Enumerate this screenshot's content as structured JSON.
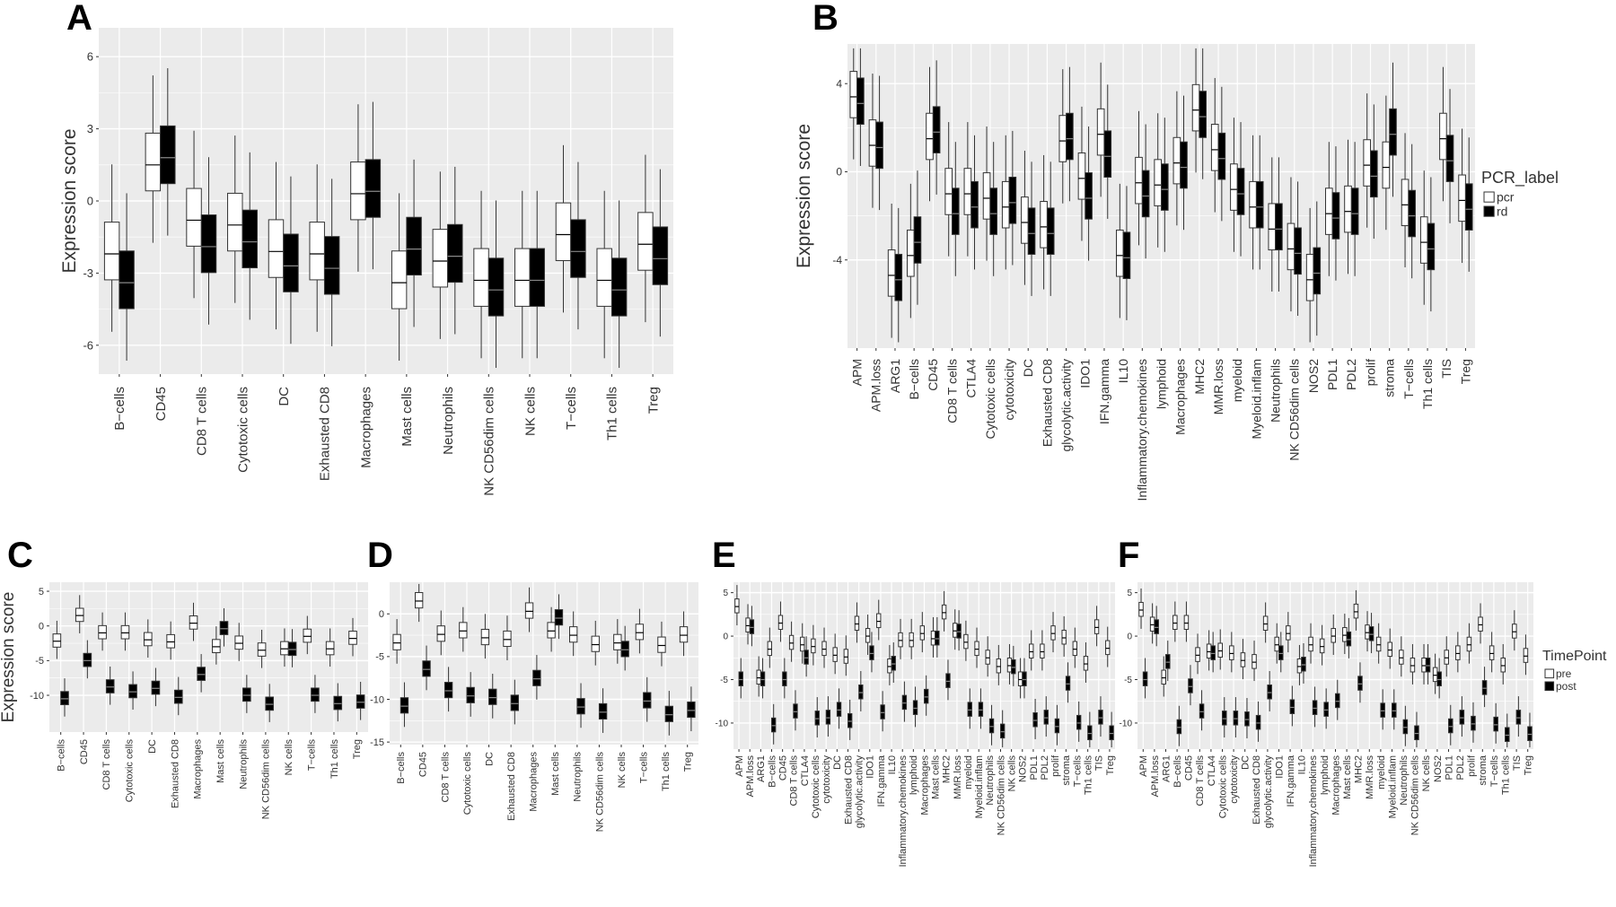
{
  "figure": {
    "panel_letters": [
      "A",
      "B",
      "C",
      "D",
      "E",
      "F"
    ],
    "ylabel": "Expression score"
  },
  "legends": {
    "pcr": {
      "title": "PCR_label",
      "items": [
        {
          "label": "pcr",
          "fill": "#ffffff"
        },
        {
          "label": "rd",
          "fill": "#000000"
        }
      ]
    },
    "timepoint": {
      "title": "TimePoint",
      "items": [
        {
          "label": "pre",
          "fill": "#ffffff"
        },
        {
          "label": "post",
          "fill": "#000000"
        }
      ]
    }
  },
  "colors": {
    "panel_background": "#ebebeb",
    "grid": "#ffffff",
    "group1_fill": "#ffffff",
    "group2_fill": "#000000",
    "box_stroke": "#333333"
  },
  "chart_data": [
    {
      "panel": "A",
      "type": "boxplot",
      "ylabel": "Expression score",
      "ylim": [
        -7.2,
        7.2
      ],
      "yticks": [
        -6,
        -3,
        0,
        3,
        6
      ],
      "grid": true,
      "legend": "none",
      "groups": [
        "pcr",
        "rd"
      ],
      "categories": [
        "B−cells",
        "CD45",
        "CD8 T cells",
        "Cytotoxic cells",
        "DC",
        "Exhausted CD8",
        "Macrophages",
        "Mast cells",
        "Neutrophils",
        "NK CD56dim cells",
        "NK cells",
        "T−cells",
        "Th1 cells",
        "Treg"
      ],
      "series": [
        {
          "name": "pcr",
          "medians": [
            -2.2,
            1.5,
            -0.8,
            -1.0,
            -2.1,
            -2.2,
            0.3,
            -3.4,
            -2.5,
            -3.3,
            -3.3,
            -1.4,
            -3.3,
            -1.8
          ]
        },
        {
          "name": "rd",
          "medians": [
            -3.4,
            1.8,
            -1.9,
            -1.7,
            -2.7,
            -2.8,
            0.4,
            -2.0,
            -2.3,
            -3.7,
            -3.3,
            -2.1,
            -3.7,
            -2.4
          ]
        }
      ]
    },
    {
      "panel": "B",
      "type": "boxplot",
      "ylabel": "Expression score",
      "ylim": [
        -8.0,
        5.8
      ],
      "yticks": [
        -4,
        0,
        4
      ],
      "grid": true,
      "legend": "right",
      "groups": [
        "pcr",
        "rd"
      ],
      "categories": [
        "APM",
        "APM.loss",
        "ARG1",
        "B−cells",
        "CD45",
        "CD8 T cells",
        "CTLA4",
        "Cytotoxic cells",
        "cytotoxicity",
        "DC",
        "Exhausted CD8",
        "glycolytic.activity",
        "IDO1",
        "IFN.gamma",
        "IL10",
        "Inflammatory.chemokines",
        "lymphoid",
        "Macrophages",
        "MHC2",
        "MMR.loss",
        "myeloid",
        "Myeloid.inflam",
        "Neutrophils",
        "NK CD56dim cells",
        "NOS2",
        "PDL1",
        "PDL2",
        "prolif",
        "stroma",
        "T−cells",
        "Th1 cells",
        "TIS",
        "Treg"
      ],
      "series": [
        {
          "name": "pcr",
          "medians": [
            3.4,
            1.2,
            -4.7,
            -3.8,
            1.5,
            -1.0,
            -1.0,
            -1.2,
            -1.6,
            -2.3,
            -2.5,
            1.4,
            -0.3,
            1.7,
            -3.8,
            -0.5,
            -0.6,
            0.4,
            2.8,
            1.0,
            -0.8,
            -1.6,
            -2.6,
            -3.5,
            -4.9,
            -1.9,
            -1.8,
            0.3,
            0.2,
            -1.5,
            -3.2,
            1.5,
            -1.3
          ]
        },
        {
          "name": "rd",
          "medians": [
            3.1,
            1.1,
            -4.9,
            -3.2,
            1.8,
            -1.9,
            -1.6,
            -1.9,
            -1.4,
            -2.8,
            -2.8,
            1.5,
            -1.2,
            0.7,
            -3.9,
            -1.1,
            -0.8,
            0.2,
            2.5,
            0.6,
            -1.0,
            -1.6,
            -2.6,
            -3.7,
            -4.6,
            -2.1,
            -1.9,
            -0.2,
            1.7,
            -2.0,
            -3.5,
            0.5,
            -1.7
          ]
        }
      ]
    },
    {
      "panel": "C",
      "type": "boxplot",
      "ylabel": "Expression score",
      "ylim": [
        -15.3,
        6.3
      ],
      "yticks": [
        -10,
        -5,
        0,
        5
      ],
      "grid": true,
      "legend": "none",
      "groups": [
        "pre",
        "post"
      ],
      "categories": [
        "B−cells",
        "CD45",
        "CD8 T cells",
        "Cytotoxic cells",
        "DC",
        "Exhausted CD8",
        "Macrophages",
        "Mast cells",
        "Neutrophils",
        "NK CD56dim cells",
        "NK cells",
        "T−cells",
        "Th1 cells",
        "Treg"
      ],
      "series": [
        {
          "name": "pre",
          "medians": [
            -2.2,
            1.5,
            -1.0,
            -1.0,
            -2.0,
            -2.3,
            0.4,
            -3.0,
            -2.5,
            -3.5,
            -3.3,
            -1.5,
            -3.3,
            -1.8
          ]
        },
        {
          "name": "post",
          "medians": [
            -10.5,
            -5.0,
            -8.8,
            -9.5,
            -9.0,
            -10.3,
            -7.0,
            -0.4,
            -10.0,
            -11.3,
            -3.4,
            -10.0,
            -11.2,
            -11.0
          ]
        }
      ]
    },
    {
      "panel": "D",
      "type": "boxplot",
      "ylabel": "",
      "ylim": [
        -15.3,
        3.7
      ],
      "yticks": [
        -15,
        -10,
        -5,
        0
      ],
      "grid": true,
      "legend": "none",
      "groups": [
        "pre",
        "post"
      ],
      "categories": [
        "B−cells",
        "CD45",
        "CD8 T cells",
        "Cytotoxic cells",
        "DC",
        "Exhausted CD8",
        "Macrophages",
        "Mast cells",
        "Neutrophils",
        "NK CD56dim cells",
        "NK cells",
        "T−cells",
        "Th1 cells",
        "Treg"
      ],
      "series": [
        {
          "name": "pre",
          "medians": [
            -3.4,
            1.5,
            -2.4,
            -2.0,
            -2.8,
            -3.0,
            0.3,
            -2.0,
            -2.5,
            -3.6,
            -3.4,
            -2.2,
            -3.7,
            -2.5
          ]
        },
        {
          "name": "post",
          "medians": [
            -10.8,
            -6.5,
            -9.0,
            -9.6,
            -9.8,
            -10.5,
            -7.6,
            -0.5,
            -10.9,
            -11.5,
            -4.2,
            -10.2,
            -11.8,
            -11.3
          ]
        }
      ]
    },
    {
      "panel": "E",
      "type": "boxplot",
      "ylabel": "",
      "ylim": [
        -13.0,
        6.2
      ],
      "yticks": [
        -10,
        -5,
        0,
        5
      ],
      "grid": true,
      "legend": "none",
      "groups": [
        "pre",
        "post"
      ],
      "categories": [
        "APM",
        "APM.loss",
        "ARG1",
        "B−cells",
        "CD45",
        "CD8 T cells",
        "CTLA4",
        "Cytotoxic cells",
        "cytotoxicity",
        "DC",
        "Exhausted CD8",
        "glycolytic.activity",
        "IDO1",
        "IFN.gamma",
        "IL10",
        "Inflammatory.chemokines",
        "lymphoid",
        "Macrophages",
        "Mast cells",
        "MHC2",
        "MMR.loss",
        "myeloid",
        "Myeloid.inflam",
        "Neutrophils",
        "NK CD56dim cells",
        "NK cells",
        "NOS2",
        "PDL1",
        "PDL2",
        "prolif",
        "stroma",
        "T−cells",
        "Th1 cells",
        "TIS",
        "Treg"
      ],
      "series": [
        {
          "name": "pre",
          "medians": [
            3.4,
            1.2,
            -4.8,
            -1.5,
            1.5,
            -0.8,
            -1.0,
            -1.2,
            -1.5,
            -2.2,
            -2.4,
            1.4,
            0.0,
            1.7,
            -3.5,
            -0.5,
            -0.5,
            0.3,
            -0.3,
            2.7,
            0.6,
            -0.7,
            -1.5,
            -2.5,
            -3.5,
            -3.4,
            -5.0,
            -1.8,
            -1.8,
            0.3,
            -0.2,
            -1.5,
            -3.2,
            1.0,
            -1.4
          ]
        },
        {
          "name": "post",
          "medians": [
            -5.0,
            1.0,
            -5.0,
            -10.3,
            -5.0,
            -8.7,
            -2.5,
            -9.5,
            -9.4,
            -8.5,
            -9.8,
            -6.5,
            -2.0,
            -8.8,
            -3.2,
            -7.7,
            -8.3,
            -7.0,
            -0.3,
            -5.2,
            0.5,
            -8.5,
            -8.5,
            -10.4,
            -11.0,
            -3.6,
            -5.0,
            -9.7,
            -9.4,
            -10.4,
            -5.5,
            -10.0,
            -11.2,
            -9.4,
            -11.2
          ]
        }
      ]
    },
    {
      "panel": "F",
      "type": "boxplot",
      "ylabel": "",
      "ylim": [
        -13.0,
        6.2
      ],
      "yticks": [
        -10,
        -5,
        0,
        5
      ],
      "grid": true,
      "legend": "right",
      "groups": [
        "pre",
        "post"
      ],
      "categories": [
        "APM",
        "APM.loss",
        "ARG1",
        "B−cells",
        "CD45",
        "CD8 T cells",
        "CTLA4",
        "Cytotoxic cells",
        "cytotoxicity",
        "DC",
        "Exhausted CD8",
        "glycolytic.activity",
        "IDO1",
        "IFN.gamma",
        "IL10",
        "Inflammatory.chemokines",
        "lymphoid",
        "Macrophages",
        "Mast cells",
        "MHC2",
        "MMR.loss",
        "myeloid",
        "Myeloid.inflam",
        "Neutrophils",
        "NK CD56dim cells",
        "NK cells",
        "NOS2",
        "PDL1",
        "PDL2",
        "prolif",
        "stroma",
        "T−cells",
        "Th1 cells",
        "TIS",
        "Treg"
      ],
      "series": [
        {
          "name": "pre",
          "medians": [
            3.0,
            1.3,
            -4.8,
            1.5,
            1.5,
            -2.2,
            -1.8,
            -1.7,
            -2.0,
            -2.8,
            -3.0,
            1.4,
            -1.0,
            0.3,
            -3.5,
            -1.0,
            -1.2,
            0.0,
            0.1,
            2.8,
            0.4,
            -1.0,
            -1.6,
            -2.5,
            -3.4,
            -3.4,
            -4.5,
            -2.5,
            -2.0,
            -1.0,
            1.3,
            -2.0,
            -3.4,
            0.5,
            -2.3
          ]
        },
        {
          "name": "post",
          "medians": [
            -5.0,
            1.0,
            -3.0,
            -10.5,
            -5.8,
            -8.7,
            -2.0,
            -9.5,
            -9.5,
            -9.6,
            -10.0,
            -6.5,
            -2.0,
            -8.2,
            -3.3,
            -8.3,
            -8.5,
            -7.5,
            -0.4,
            -5.5,
            0.2,
            -8.6,
            -8.6,
            -10.5,
            -11.2,
            -3.4,
            -5.0,
            -10.4,
            -9.4,
            -10.1,
            -6.0,
            -10.2,
            -11.4,
            -9.4,
            -11.3
          ]
        }
      ]
    }
  ]
}
